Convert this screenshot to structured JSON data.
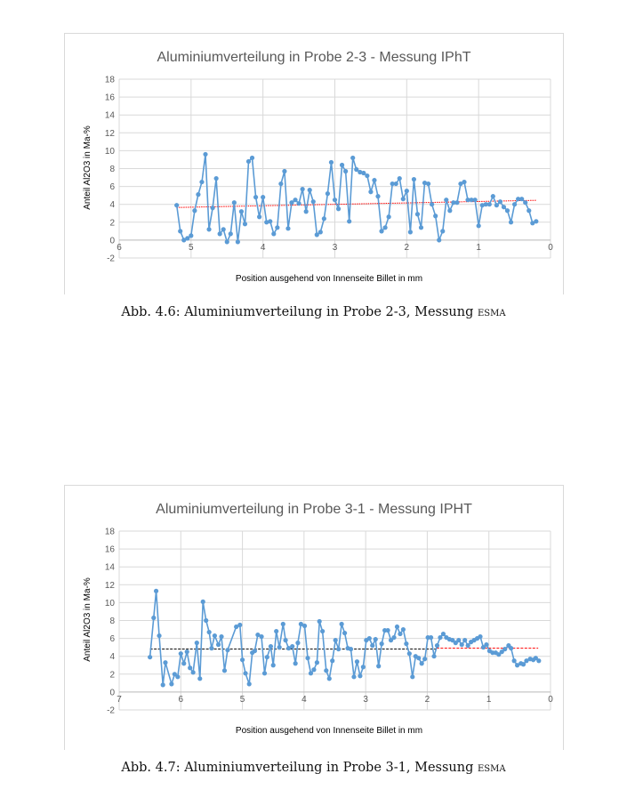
{
  "captions": [
    {
      "label": "Abb. 4.6:",
      "text": "Aluminiumverteilung in Probe 2-3, Messung",
      "suffix": "esma"
    },
    {
      "label": "Abb. 4.7:",
      "text": "Aluminiumverteilung in Probe 3-1, Messung",
      "suffix": "esma"
    }
  ],
  "colors": {
    "series": "#5b9bd5",
    "trend": "#ff0000",
    "mean": "#000000",
    "grid": "#d9d9d9",
    "text": "#595959"
  },
  "chart_data": [
    {
      "type": "line",
      "title": "Aluminiumverteilung in Probe 2-3 - Messung IPhT",
      "xlabel": "Position ausgehend von Innenseite Billet in mm",
      "ylabel": "Anteil Al2O3 in Ma-%",
      "xlim": [
        6,
        0
      ],
      "x_reversed": true,
      "ylim": [
        -2,
        18
      ],
      "xticks": [
        6,
        5,
        4,
        3,
        2,
        1,
        0
      ],
      "yticks": [
        -2,
        0,
        2,
        4,
        6,
        8,
        10,
        12,
        14,
        16,
        18
      ],
      "grid": true,
      "legend": "none",
      "series": [
        {
          "marker": "circle",
          "points": [
            [
              5.2,
              3.9
            ],
            [
              5.15,
              1.0
            ],
            [
              5.1,
              0.0
            ],
            [
              5.05,
              0.2
            ],
            [
              5.0,
              0.5
            ],
            [
              4.95,
              3.3
            ],
            [
              4.9,
              5.1
            ],
            [
              4.85,
              6.5
            ],
            [
              4.8,
              9.6
            ],
            [
              4.75,
              1.2
            ],
            [
              4.7,
              3.6
            ],
            [
              4.65,
              6.9
            ],
            [
              4.6,
              0.7
            ],
            [
              4.55,
              1.2
            ],
            [
              4.5,
              -0.2
            ],
            [
              4.45,
              0.7
            ],
            [
              4.4,
              4.2
            ],
            [
              4.35,
              -0.2
            ],
            [
              4.3,
              3.2
            ],
            [
              4.25,
              1.8
            ],
            [
              4.2,
              8.8
            ],
            [
              4.15,
              9.2
            ],
            [
              4.1,
              4.8
            ],
            [
              4.05,
              2.6
            ],
            [
              4.0,
              4.8
            ],
            [
              3.95,
              2.0
            ],
            [
              3.9,
              2.1
            ],
            [
              3.85,
              0.7
            ],
            [
              3.8,
              1.4
            ],
            [
              3.75,
              6.3
            ],
            [
              3.7,
              7.7
            ],
            [
              3.65,
              1.3
            ],
            [
              3.6,
              4.2
            ],
            [
              3.55,
              4.5
            ],
            [
              3.5,
              4.1
            ],
            [
              3.45,
              5.7
            ],
            [
              3.4,
              3.2
            ],
            [
              3.35,
              5.6
            ],
            [
              3.3,
              4.3
            ],
            [
              3.25,
              0.6
            ],
            [
              3.2,
              0.9
            ],
            [
              3.15,
              2.4
            ],
            [
              3.1,
              5.2
            ],
            [
              3.05,
              8.7
            ],
            [
              3.0,
              4.5
            ],
            [
              2.95,
              3.5
            ],
            [
              2.9,
              8.4
            ],
            [
              2.85,
              7.7
            ],
            [
              2.8,
              2.1
            ],
            [
              2.75,
              9.2
            ],
            [
              2.7,
              7.9
            ],
            [
              2.65,
              7.6
            ],
            [
              2.6,
              7.5
            ],
            [
              2.55,
              7.2
            ],
            [
              2.5,
              5.4
            ],
            [
              2.45,
              6.7
            ],
            [
              2.4,
              4.9
            ],
            [
              2.35,
              1.0
            ],
            [
              2.3,
              1.4
            ],
            [
              2.25,
              2.6
            ],
            [
              2.2,
              6.3
            ],
            [
              2.15,
              6.3
            ],
            [
              2.1,
              6.9
            ],
            [
              2.05,
              4.6
            ],
            [
              2.0,
              5.5
            ],
            [
              1.95,
              0.9
            ],
            [
              1.9,
              6.8
            ],
            [
              1.85,
              2.9
            ],
            [
              1.8,
              1.4
            ],
            [
              1.75,
              6.4
            ],
            [
              1.7,
              6.3
            ],
            [
              1.65,
              4.0
            ],
            [
              1.6,
              2.7
            ],
            [
              1.55,
              0.0
            ],
            [
              1.5,
              1.0
            ],
            [
              1.45,
              4.5
            ],
            [
              1.4,
              3.3
            ],
            [
              1.35,
              4.2
            ],
            [
              1.3,
              4.2
            ],
            [
              1.25,
              6.3
            ],
            [
              1.2,
              6.5
            ],
            [
              1.15,
              4.5
            ],
            [
              1.1,
              4.5
            ],
            [
              1.05,
              4.5
            ],
            [
              1.0,
              1.6
            ],
            [
              0.95,
              3.9
            ],
            [
              0.9,
              4.0
            ],
            [
              0.85,
              4.0
            ],
            [
              0.8,
              4.9
            ],
            [
              0.75,
              3.9
            ],
            [
              0.7,
              4.3
            ],
            [
              0.65,
              3.7
            ],
            [
              0.6,
              3.3
            ],
            [
              0.55,
              2.0
            ],
            [
              0.5,
              4.0
            ],
            [
              0.45,
              4.6
            ],
            [
              0.4,
              4.6
            ],
            [
              0.35,
              4.2
            ],
            [
              0.3,
              3.3
            ],
            [
              0.25,
              1.9
            ],
            [
              0.2,
              2.1
            ]
          ]
        }
      ],
      "reference_lines": [
        {
          "kind": "linear-trend",
          "color": "#ff0000",
          "from": [
            5.2,
            3.65
          ],
          "to": [
            0.2,
            4.45
          ]
        }
      ]
    },
    {
      "type": "line",
      "title": "Aluminiumverteilung in Probe 3-1 - Messung IPHT",
      "xlabel": "Position ausgehend von Innenseite Billet in mm",
      "ylabel": "Anteil Al2O3 in Ma-%",
      "xlim": [
        7,
        0
      ],
      "x_reversed": true,
      "ylim": [
        -2,
        18
      ],
      "xticks": [
        7,
        6,
        5,
        4,
        3,
        2,
        1,
        0
      ],
      "yticks": [
        -2,
        0,
        2,
        4,
        6,
        8,
        10,
        12,
        14,
        16,
        18
      ],
      "grid": true,
      "legend": "none",
      "series": [
        {
          "marker": "circle",
          "points": [
            [
              6.5,
              3.9
            ],
            [
              6.44,
              8.3
            ],
            [
              6.4,
              11.3
            ],
            [
              6.35,
              6.3
            ],
            [
              6.29,
              0.8
            ],
            [
              6.25,
              3.3
            ],
            [
              6.15,
              0.9
            ],
            [
              6.1,
              2.0
            ],
            [
              6.05,
              1.7
            ],
            [
              6.0,
              4.3
            ],
            [
              5.95,
              3.2
            ],
            [
              5.9,
              4.5
            ],
            [
              5.85,
              2.7
            ],
            [
              5.8,
              2.2
            ],
            [
              5.74,
              5.5
            ],
            [
              5.69,
              1.5
            ],
            [
              5.64,
              10.1
            ],
            [
              5.59,
              8.0
            ],
            [
              5.54,
              6.7
            ],
            [
              5.5,
              4.9
            ],
            [
              5.45,
              6.3
            ],
            [
              5.39,
              5.3
            ],
            [
              5.34,
              6.2
            ],
            [
              5.29,
              2.4
            ],
            [
              5.24,
              4.7
            ],
            [
              5.1,
              7.3
            ],
            [
              5.04,
              7.5
            ],
            [
              5.0,
              3.6
            ],
            [
              4.95,
              2.1
            ],
            [
              4.89,
              0.9
            ],
            [
              4.84,
              4.4
            ],
            [
              4.8,
              4.6
            ],
            [
              4.75,
              6.4
            ],
            [
              4.69,
              6.2
            ],
            [
              4.64,
              2.1
            ],
            [
              4.6,
              3.9
            ],
            [
              4.54,
              5.1
            ],
            [
              4.5,
              3.0
            ],
            [
              4.45,
              6.8
            ],
            [
              4.4,
              5.0
            ],
            [
              4.34,
              7.6
            ],
            [
              4.3,
              5.8
            ],
            [
              4.25,
              4.9
            ],
            [
              4.19,
              5.1
            ],
            [
              4.14,
              3.2
            ],
            [
              4.1,
              5.5
            ],
            [
              4.05,
              7.6
            ],
            [
              3.99,
              7.4
            ],
            [
              3.94,
              3.8
            ],
            [
              3.89,
              2.1
            ],
            [
              3.84,
              2.5
            ],
            [
              3.79,
              3.3
            ],
            [
              3.75,
              7.9
            ],
            [
              3.7,
              6.8
            ],
            [
              3.64,
              2.4
            ],
            [
              3.59,
              1.5
            ],
            [
              3.54,
              3.5
            ],
            [
              3.49,
              5.8
            ],
            [
              3.44,
              4.8
            ],
            [
              3.39,
              7.6
            ],
            [
              3.34,
              6.6
            ],
            [
              3.29,
              4.9
            ],
            [
              3.24,
              4.8
            ],
            [
              3.19,
              1.7
            ],
            [
              3.14,
              3.4
            ],
            [
              3.09,
              1.8
            ],
            [
              3.04,
              2.8
            ],
            [
              2.99,
              5.8
            ],
            [
              2.94,
              6.0
            ],
            [
              2.89,
              5.2
            ],
            [
              2.84,
              5.9
            ],
            [
              2.79,
              2.9
            ],
            [
              2.74,
              5.4
            ],
            [
              2.69,
              6.9
            ],
            [
              2.64,
              6.9
            ],
            [
              2.59,
              5.8
            ],
            [
              2.54,
              6.1
            ],
            [
              2.49,
              7.3
            ],
            [
              2.44,
              6.5
            ],
            [
              2.39,
              7.0
            ],
            [
              2.34,
              5.4
            ],
            [
              2.29,
              4.3
            ],
            [
              2.24,
              1.7
            ],
            [
              2.19,
              4.0
            ],
            [
              2.14,
              3.8
            ],
            [
              2.09,
              3.2
            ],
            [
              2.04,
              3.7
            ],
            [
              1.99,
              6.1
            ],
            [
              1.94,
              6.1
            ],
            [
              1.89,
              4.0
            ],
            [
              1.84,
              5.2
            ],
            [
              1.79,
              6.1
            ],
            [
              1.74,
              6.5
            ],
            [
              1.69,
              6.1
            ],
            [
              1.64,
              5.9
            ],
            [
              1.59,
              5.8
            ],
            [
              1.54,
              5.5
            ],
            [
              1.49,
              5.8
            ],
            [
              1.44,
              5.3
            ],
            [
              1.39,
              5.8
            ],
            [
              1.34,
              5.2
            ],
            [
              1.29,
              5.6
            ],
            [
              1.24,
              5.8
            ],
            [
              1.19,
              6.0
            ],
            [
              1.14,
              6.2
            ],
            [
              1.09,
              5.0
            ],
            [
              1.04,
              5.3
            ],
            [
              0.99,
              4.6
            ],
            [
              0.94,
              4.4
            ],
            [
              0.89,
              4.4
            ],
            [
              0.84,
              4.2
            ],
            [
              0.79,
              4.5
            ],
            [
              0.74,
              4.8
            ],
            [
              0.68,
              5.2
            ],
            [
              0.64,
              4.9
            ],
            [
              0.59,
              3.5
            ],
            [
              0.54,
              3.0
            ],
            [
              0.48,
              3.2
            ],
            [
              0.44,
              3.1
            ],
            [
              0.39,
              3.5
            ],
            [
              0.33,
              3.7
            ],
            [
              0.28,
              3.6
            ],
            [
              0.24,
              3.8
            ],
            [
              0.19,
              3.5
            ]
          ]
        }
      ],
      "reference_lines": [
        {
          "kind": "mean",
          "color": "#000000",
          "from": [
            6.5,
            4.8
          ],
          "to": [
            1.85,
            4.8
          ]
        },
        {
          "kind": "mean",
          "color": "#ff0000",
          "from": [
            1.85,
            4.9
          ],
          "to": [
            0.2,
            4.9
          ]
        }
      ]
    }
  ]
}
